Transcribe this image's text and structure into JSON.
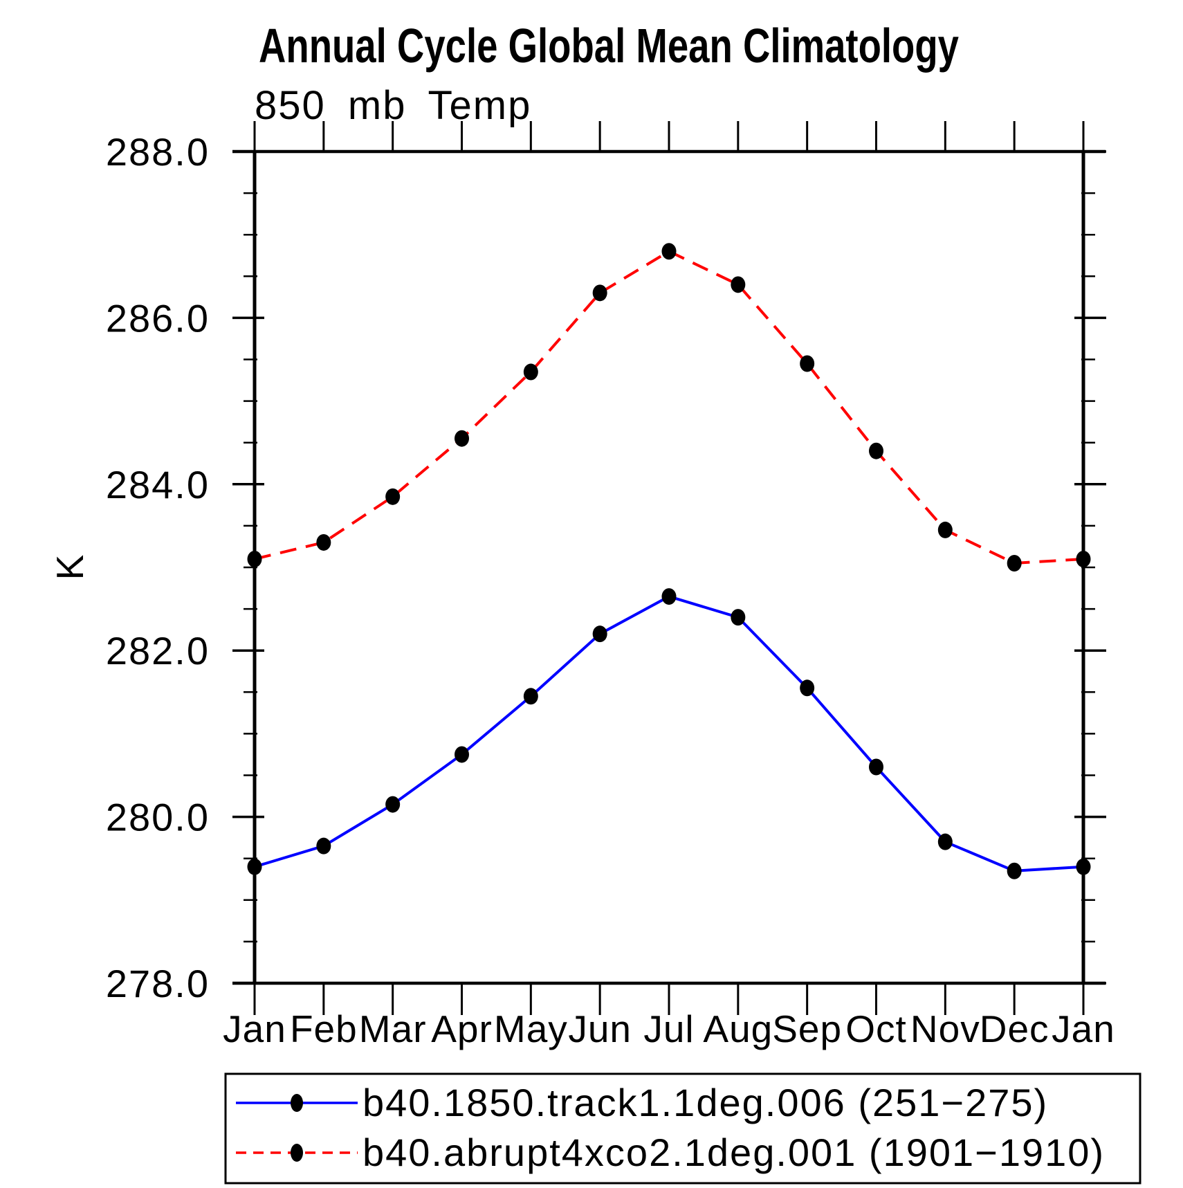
{
  "title": "Annual Cycle Global Mean Climatology",
  "subtitle": "850 mb Temp",
  "y_axis": {
    "label": "K",
    "tick_labels": [
      "288.0",
      "286.0",
      "284.0",
      "282.0",
      "280.0",
      "278.0"
    ],
    "minor_step": 0.5
  },
  "x_axis": {
    "labels": [
      "Jan",
      "Feb",
      "Mar",
      "Apr",
      "May",
      "Jun",
      "Jul",
      "Aug",
      "Sep",
      "Oct",
      "Nov",
      "Dec",
      "Jan"
    ]
  },
  "colors": {
    "axis": "#000000",
    "marker": "#000000",
    "series1": "#0000ff",
    "series2": "#ff0000"
  },
  "chart_data": {
    "type": "line",
    "title": "Annual Cycle Global Mean Climatology",
    "subtitle": "850 mb Temp",
    "ylabel": "K",
    "xlabel": "",
    "ylim": [
      278.0,
      288.0
    ],
    "y_major_step": 2.0,
    "y_minor_step": 0.5,
    "grid": false,
    "legend_position": "bottom",
    "marker": "filled-circle",
    "marker_color": "#000000",
    "x": [
      "Jan",
      "Feb",
      "Mar",
      "Apr",
      "May",
      "Jun",
      "Jul",
      "Aug",
      "Sep",
      "Oct",
      "Nov",
      "Dec",
      "Jan"
    ],
    "series": [
      {
        "name": "b40.1850.track1.1deg.006 (251−275)",
        "color": "#0000ff",
        "line_style": "solid",
        "values": [
          279.4,
          279.65,
          280.15,
          280.75,
          281.45,
          282.2,
          282.65,
          282.4,
          281.55,
          280.6,
          279.7,
          279.35,
          279.4
        ]
      },
      {
        "name": "b40.abrupt4xco2.1deg.001 (1901−1910)",
        "color": "#ff0000",
        "line_style": "dashed",
        "values": [
          283.1,
          283.3,
          283.85,
          284.55,
          285.35,
          286.3,
          286.8,
          286.4,
          285.45,
          284.4,
          283.45,
          283.05,
          283.1
        ]
      }
    ]
  }
}
